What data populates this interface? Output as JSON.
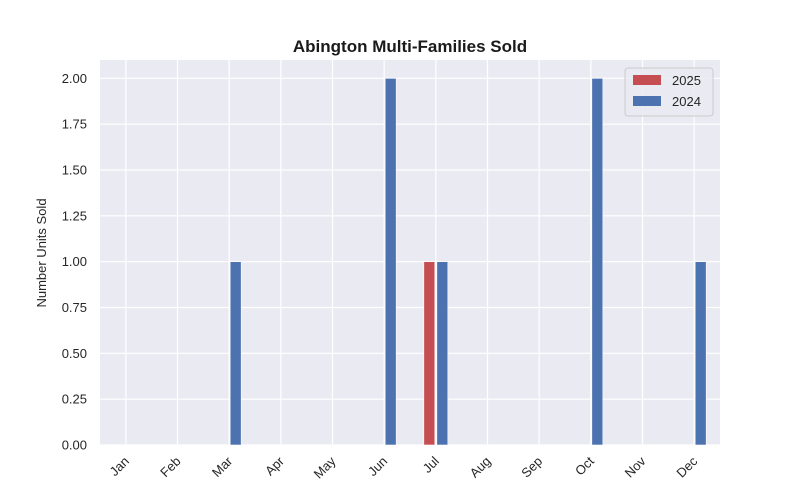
{
  "chart_data": {
    "type": "bar",
    "title": "Abington Multi-Families Sold",
    "xlabel": "",
    "ylabel": "Number Units Sold",
    "categories": [
      "Jan",
      "Feb",
      "Mar",
      "Apr",
      "May",
      "Jun",
      "Jul",
      "Aug",
      "Sep",
      "Oct",
      "Nov",
      "Dec"
    ],
    "series": [
      {
        "name": "2025",
        "color": "#c44e52",
        "values": [
          0,
          0,
          0,
          0,
          0,
          0,
          1,
          0,
          0,
          0,
          0,
          0
        ]
      },
      {
        "name": "2024",
        "color": "#4c72b0",
        "values": [
          0,
          0,
          1,
          0,
          0,
          2,
          1,
          0,
          0,
          2,
          0,
          1
        ]
      }
    ],
    "ylim": [
      0,
      2.1
    ],
    "yticks": [
      "0.00",
      "0.25",
      "0.50",
      "0.75",
      "1.00",
      "1.25",
      "1.50",
      "1.75",
      "2.00"
    ],
    "grid": true,
    "legend_position": "top-right",
    "background_color": "#eaeaf2"
  }
}
